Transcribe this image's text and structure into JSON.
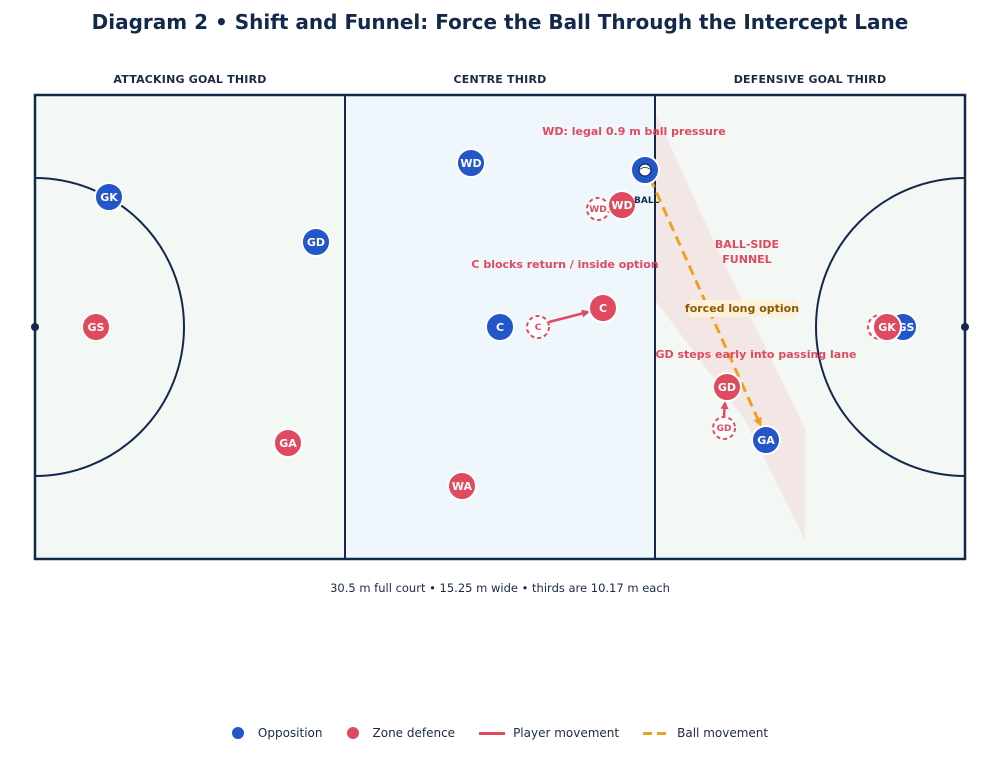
{
  "title": "Diagram 2 • Shift and Funnel: Force the Ball Through the Intercept Lane",
  "zones": [
    {
      "label": "ATTACKING GOAL THIRD"
    },
    {
      "label": "CENTRE THIRD"
    },
    {
      "label": "DEFENSIVE GOAL THIRD"
    }
  ],
  "footnote": "30.5 m full court  •  15.25 m wide  •  thirds are 10.17 m each",
  "colors": {
    "opposition": "#2356c9",
    "defence": "#e04a5f",
    "ball_path": "#f0a020",
    "court_line": "#13294b",
    "third_fill": "#f3f8f5",
    "centre_fill": "#eff6fc"
  },
  "opposition_players": [
    {
      "label": "GK"
    },
    {
      "label": "GD"
    },
    {
      "label": "WD"
    },
    {
      "label": "C"
    },
    {
      "label": "GA"
    },
    {
      "label": "GS"
    }
  ],
  "defence_players": [
    {
      "label": "GS"
    },
    {
      "label": "GA"
    },
    {
      "label": "WA"
    },
    {
      "label": "WD"
    },
    {
      "label": "C"
    },
    {
      "label": "GD"
    },
    {
      "label": "GK"
    }
  ],
  "ghost_positions": [
    {
      "label": "WD"
    },
    {
      "label": "C"
    },
    {
      "label": "GD"
    }
  ],
  "ball_label": "BALL",
  "ball_icon": "netball-icon",
  "annotations": {
    "wd_pressure": "WD: legal 0.9 m ball pressure",
    "c_blocks": "C blocks return / inside option",
    "funnel_line1": "BALL-SIDE",
    "funnel_line2": "FUNNEL",
    "forced": "forced long option",
    "gd_steps": "GD steps early into passing lane"
  },
  "legend": [
    {
      "label": "Opposition",
      "kind": "dot",
      "color": "#2356c9"
    },
    {
      "label": "Zone defence",
      "kind": "dot",
      "color": "#e04a5f"
    },
    {
      "label": "Player movement",
      "kind": "solid",
      "color": "#e04a5f"
    },
    {
      "label": "Ball movement",
      "kind": "dashed",
      "color": "#f0a020"
    }
  ]
}
